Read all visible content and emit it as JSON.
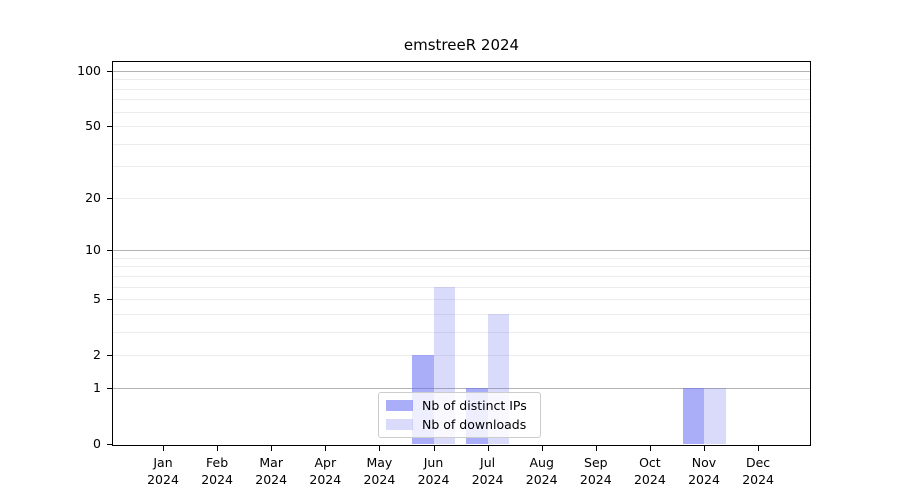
{
  "chart_data": {
    "type": "bar",
    "title": "emstreeR 2024",
    "categories": [
      "Jan",
      "Feb",
      "Mar",
      "Apr",
      "May",
      "Jun",
      "Jul",
      "Aug",
      "Sep",
      "Oct",
      "Nov",
      "Dec"
    ],
    "x_tick_year": "2024",
    "series": [
      {
        "name": "Nb of distinct IPs",
        "color": "rgba(100,105,240,0.55)",
        "values": [
          0,
          0,
          0,
          0,
          0,
          2,
          1,
          0,
          0,
          0,
          1,
          0
        ]
      },
      {
        "name": "Nb of downloads",
        "color": "rgba(100,105,240,0.24)",
        "values": [
          0,
          0,
          0,
          0,
          0,
          6,
          4,
          0,
          0,
          0,
          1,
          0
        ]
      }
    ],
    "y_axis": {
      "scale": "log1p",
      "ylim": [
        0,
        112
      ],
      "tick_values": [
        0,
        1,
        2,
        5,
        10,
        20,
        50,
        100
      ],
      "minor_gridline_values": [
        2,
        3,
        4,
        5,
        6,
        7,
        8,
        9,
        20,
        30,
        40,
        50,
        60,
        70,
        80,
        90
      ],
      "major_gridline_values": [
        1,
        10,
        100
      ]
    },
    "legend": {
      "position": "lower center"
    },
    "grid": "horizontal",
    "xlabel": "",
    "ylabel": ""
  },
  "colors": {
    "grid_minor": "#ececec",
    "grid_major": "#b3b3b3",
    "axis": "#000000",
    "legend_border": "#cccccc"
  }
}
